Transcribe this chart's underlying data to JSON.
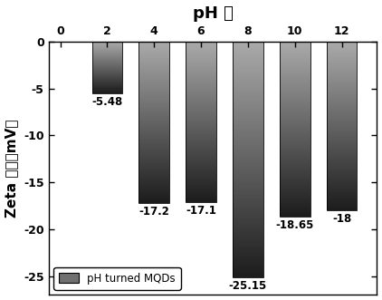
{
  "categories": [
    2,
    4,
    6,
    8,
    10,
    12
  ],
  "values": [
    -5.48,
    -17.2,
    -17.1,
    -25.15,
    -18.65,
    -18
  ],
  "ylabel": "Zeta 电势（mV）",
  "title": "pH 値",
  "ylim": [
    -27,
    0
  ],
  "yticks": [
    0,
    -5,
    -10,
    -15,
    -20,
    -25
  ],
  "legend_label": "pH turned MQDs",
  "bar_color_top": "#aaaaaa",
  "bar_color_bottom": "#1c1c1c",
  "bar_width": 1.3,
  "label_fontsize": 9,
  "axis_label_fontsize": 11,
  "title_fontsize": 13,
  "background_color": "#ffffff",
  "value_labels": [
    "-5.48",
    "-17.2",
    "-17.1",
    "-25.15",
    "-18.65",
    "-18"
  ],
  "xtick_labels": [
    "0",
    "2",
    "4",
    "6",
    "8",
    "10",
    "12"
  ],
  "xtick_positions": [
    0,
    2,
    4,
    6,
    8,
    10,
    12
  ]
}
